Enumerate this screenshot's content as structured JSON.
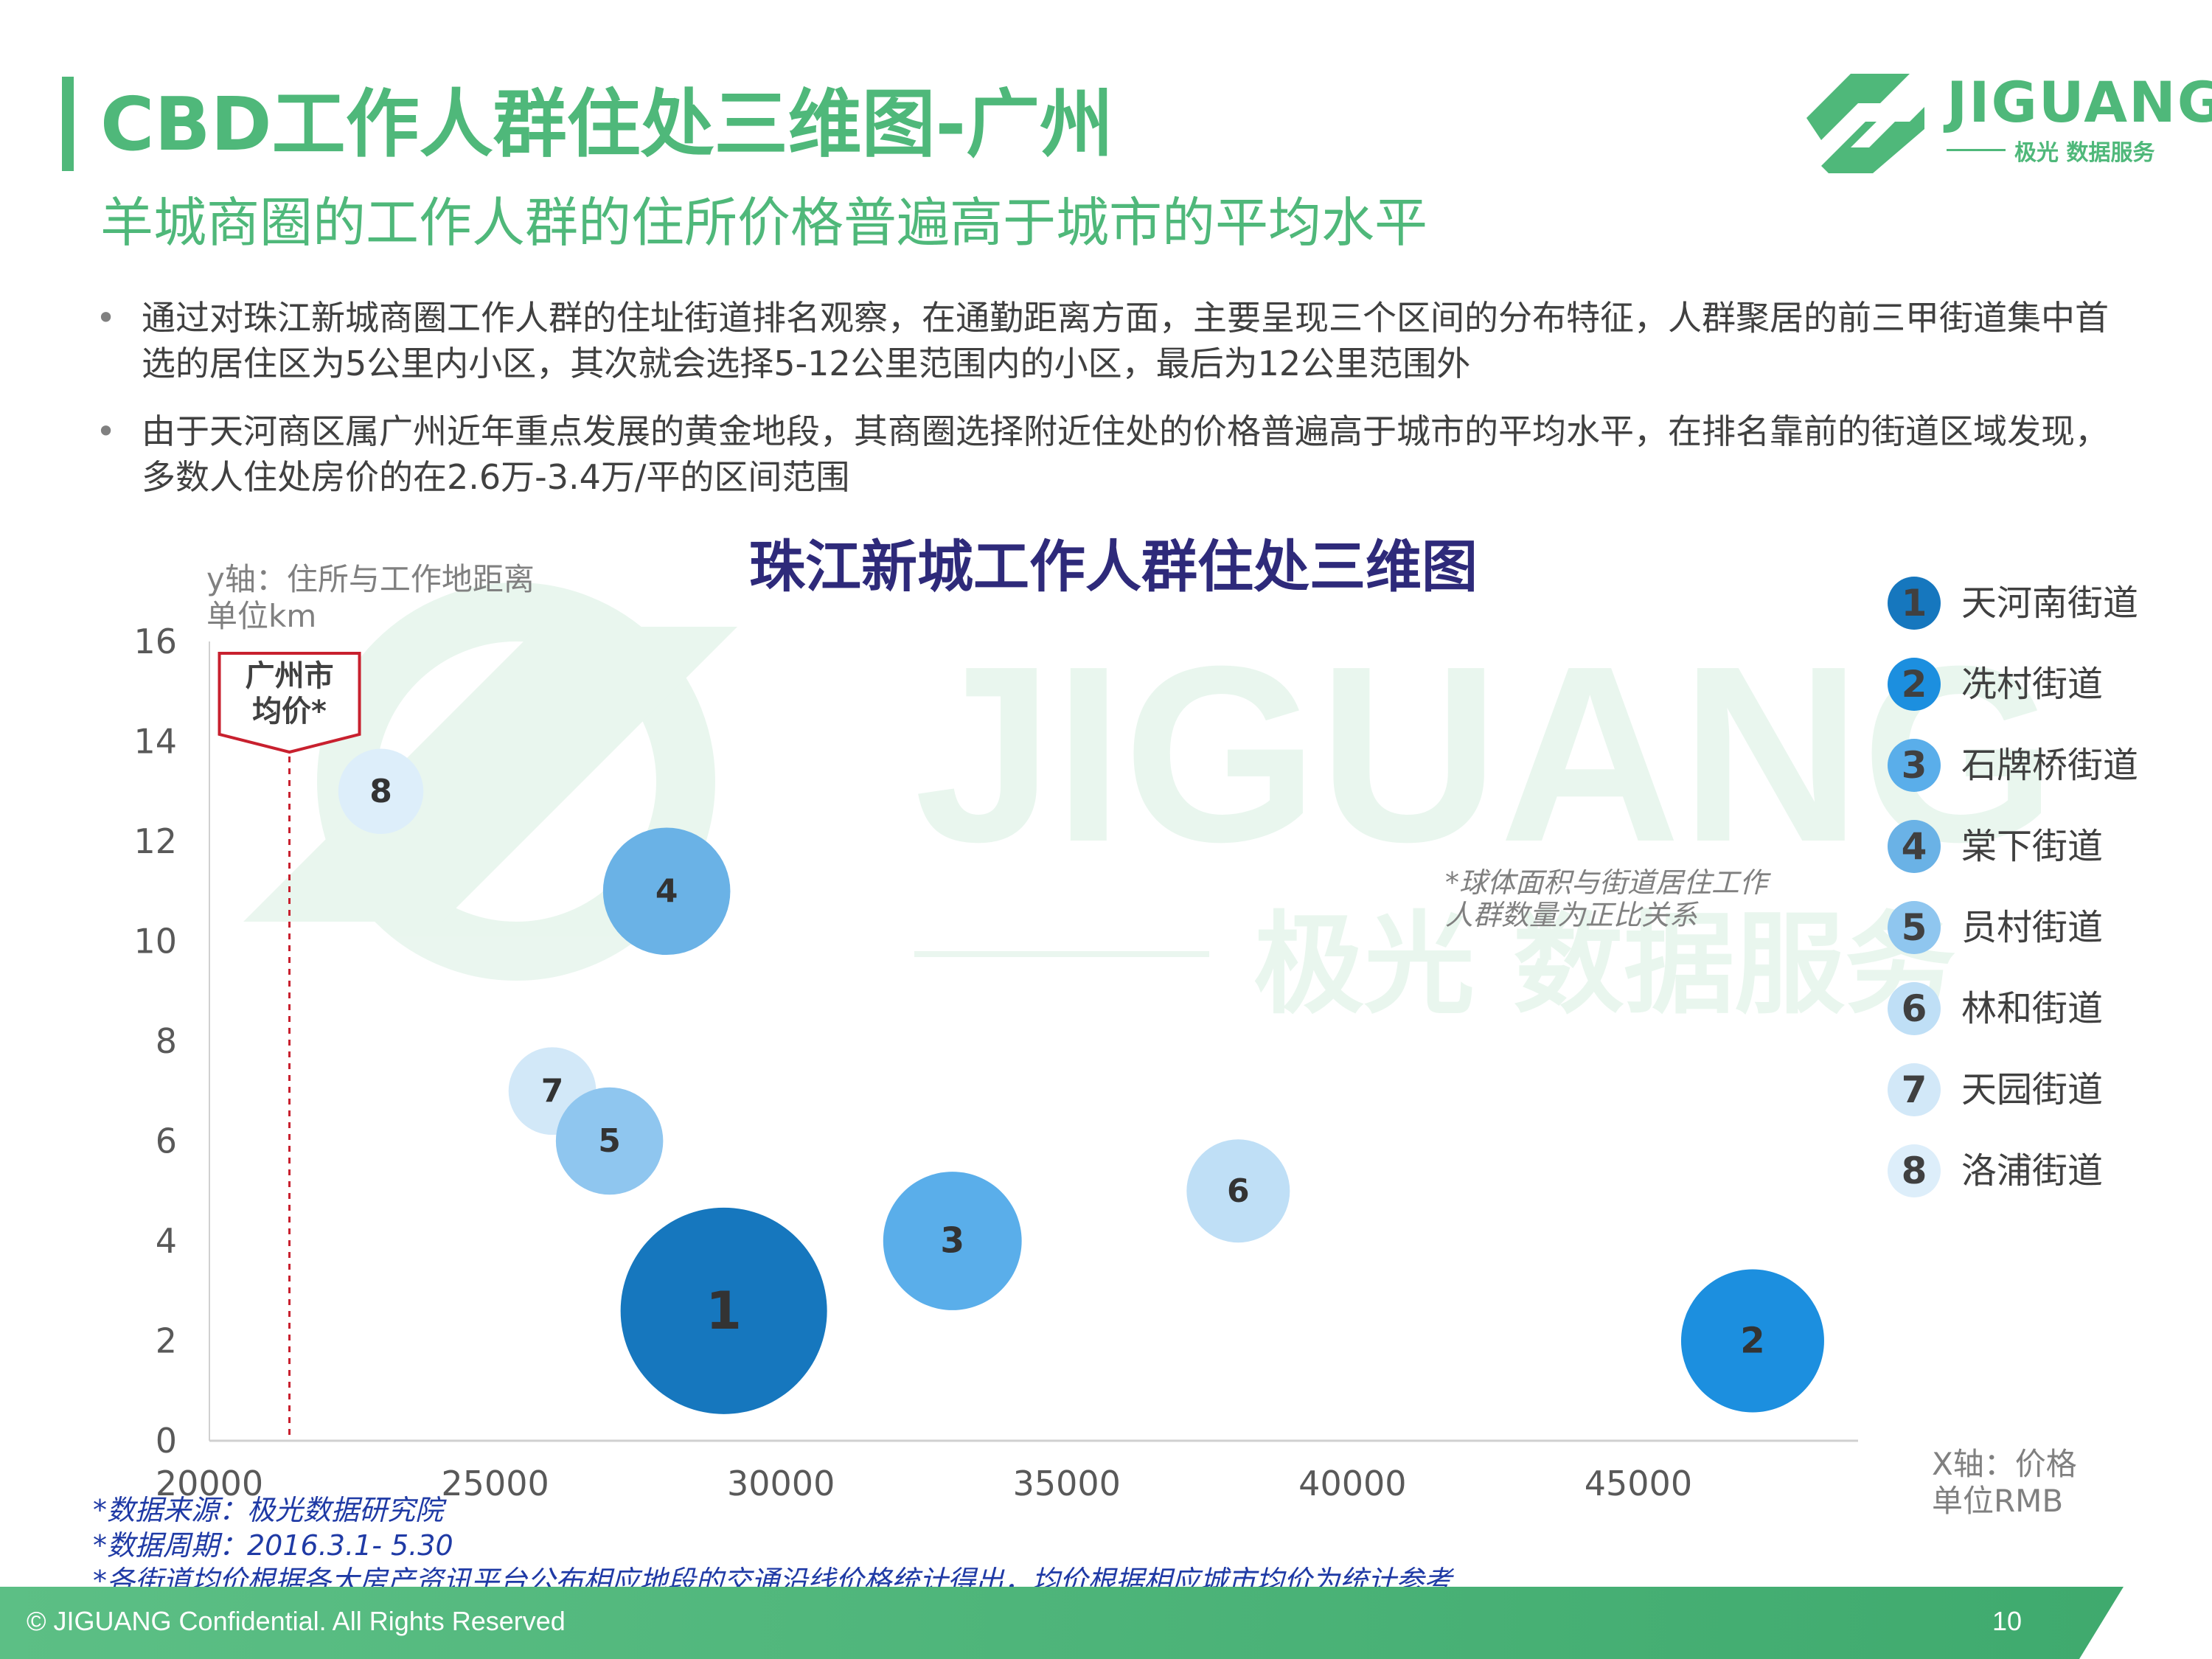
{
  "header": {
    "title": "CBD工作人群住处三维图-广州",
    "subtitle": "羊城商圈的工作人群的住所价格普遍高于城市的平均水平"
  },
  "logo": {
    "brand": "JIGUANG",
    "tagline": "极光 数据服务"
  },
  "watermark": {
    "brand": "JIGUANG",
    "tagline": "极光 数据服务"
  },
  "bullets": [
    "通过对珠江新城商圈工作人群的住址街道排名观察，在通勤距离方面，主要呈现三个区间的分布特征，人群聚居的前三甲街道集中首选的居住区为5公里内小区，其次就会选择5-12公里范围内的小区，最后为12公里范围外",
    "由于天河商区属广州近年重点发展的黄金地段，其商圈选择附近住处的价格普遍高于城市的平均水平，在排名靠前的街道区域发现，多数人住处房价的在2.6万-3.4万/平的区间范围"
  ],
  "chart_data": {
    "type": "scatter",
    "title": "珠江新城工作人群住处三维图",
    "ylabel_line1": "y轴：住所与工作地距离",
    "ylabel_line2": "单位km",
    "xlabel_line1": "X轴：价格",
    "xlabel_line2": "单位RMB",
    "xlim": [
      20000,
      49000
    ],
    "ylim": [
      0,
      16
    ],
    "x_ticks": [
      "20000",
      "25000",
      "30000",
      "35000",
      "40000",
      "45000"
    ],
    "y_ticks": [
      "0",
      "2",
      "4",
      "6",
      "8",
      "10",
      "12",
      "14",
      "16"
    ],
    "avg_marker": {
      "label_line1": "广州市",
      "label_line2": "均价*",
      "x": 21400
    },
    "size_note_line1": "*球体面积与街道居住工作",
    "size_note_line2": "人群数量为正比关系",
    "points": [
      {
        "id": "1",
        "name": "天河南街道",
        "x": 29000,
        "y": 2.6,
        "size": 1.0,
        "color": "#1677be"
      },
      {
        "id": "2",
        "name": "冼村街道",
        "x": 47000,
        "y": 2.0,
        "size": 0.48,
        "color": "#1c8fdf"
      },
      {
        "id": "3",
        "name": "石牌桥街道",
        "x": 33000,
        "y": 4.0,
        "size": 0.45,
        "color": "#5aaeea"
      },
      {
        "id": "4",
        "name": "棠下街道",
        "x": 28000,
        "y": 11.0,
        "size": 0.38,
        "color": "#6ab2e6"
      },
      {
        "id": "5",
        "name": "员村街道",
        "x": 27000,
        "y": 6.0,
        "size": 0.27,
        "color": "#8fc6ef"
      },
      {
        "id": "6",
        "name": "林和街道",
        "x": 38000,
        "y": 5.0,
        "size": 0.25,
        "color": "#bfdff6"
      },
      {
        "id": "7",
        "name": "天园街道",
        "x": 26000,
        "y": 7.0,
        "size": 0.18,
        "color": "#d2e8f8"
      },
      {
        "id": "8",
        "name": "洛浦街道",
        "x": 23000,
        "y": 13.0,
        "size": 0.17,
        "color": "#ddeefa"
      }
    ]
  },
  "notes": [
    "*数据来源：极光数据研究院",
    "*数据周期：2016.3.1- 5.30",
    "*各街道均价根据各大房产资讯平台公布相应地段的交通沿线价格统计得出，均价根据相应城市均价为统计参考"
  ],
  "footer": {
    "copyright": "© JIGUANG Confidential. All Rights Reserved",
    "page_number": "10"
  },
  "colors": {
    "brand_green": "#4fb87a",
    "title_navy": "#2e2a7a",
    "avg_red": "#c8202e"
  }
}
